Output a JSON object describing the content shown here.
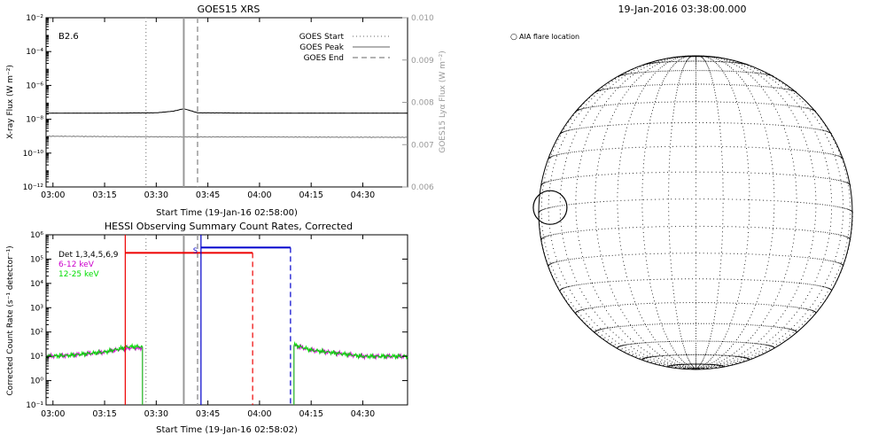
{
  "chart_data": [
    {
      "type": "line",
      "title": "GOES15 XRS",
      "xlabel": "Start Time (19-Jan-16 02:58:00)",
      "ylabel": "X-ray Flux (W m⁻²)",
      "y2label": "GOES15 Lyα Flux (W m⁻²)",
      "annotation": "B2.6",
      "x_ticks": [
        "03:00",
        "03:15",
        "03:30",
        "03:45",
        "04:00",
        "04:15",
        "04:30"
      ],
      "xlim": [
        "02:58",
        "04:43"
      ],
      "y_scale": "log",
      "ylim": [
        1e-12,
        0.01
      ],
      "y_ticks": [
        "10⁻¹²",
        "10⁻¹⁰",
        "10⁻⁸",
        "10⁻⁶",
        "10⁻⁴",
        "10⁻²"
      ],
      "y2lim": [
        0.006,
        0.01
      ],
      "y2_ticks": [
        "0.006",
        "0.007",
        "0.008",
        "0.009",
        "0.010"
      ],
      "legend": {
        "position": "top-right",
        "entries": [
          {
            "label": "GOES Start",
            "style": "dotted",
            "time": "03:27"
          },
          {
            "label": "GOES Peak",
            "style": "solid",
            "time": "03:38"
          },
          {
            "label": "GOES End",
            "style": "dashed",
            "time": "03:42"
          }
        ]
      },
      "series": [
        {
          "axis": "left",
          "color": "#000000",
          "x": [
            "02:58",
            "03:15",
            "03:30",
            "03:35",
            "03:38",
            "03:40",
            "03:42",
            "04:00",
            "04:15",
            "04:43"
          ],
          "y": [
            2.3e-08,
            2.3e-08,
            2.4e-08,
            3e-08,
            4.2e-08,
            3.2e-08,
            2.4e-08,
            2.3e-08,
            2.3e-08,
            2.3e-08
          ]
        },
        {
          "axis": "left",
          "color": "#777777",
          "x": [
            "02:58",
            "03:15",
            "03:30",
            "03:45",
            "04:00",
            "04:15",
            "04:43"
          ],
          "y": [
            1e-09,
            9.5e-10,
            9.2e-10,
            9e-10,
            9e-10,
            8.8e-10,
            8.6e-10
          ]
        }
      ]
    },
    {
      "type": "line",
      "title": "HESSI Observing Summary Count Rates, Corrected",
      "xlabel": "Start Time (19-Jan-16 02:58:02)",
      "ylabel": "Corrected Count Rate (s⁻¹ detector⁻¹)",
      "x_ticks": [
        "03:00",
        "03:15",
        "03:30",
        "03:45",
        "04:00",
        "04:15",
        "04:30"
      ],
      "xlim": [
        "02:58",
        "04:43"
      ],
      "y_scale": "log",
      "ylim": [
        0.1,
        1000000.0
      ],
      "y_ticks": [
        "10⁻¹",
        "10⁰",
        "10¹",
        "10²",
        "10³",
        "10⁴",
        "10⁵",
        "10⁶"
      ],
      "legend_entries": [
        {
          "label": "Det 1,3,4,5,6,9",
          "color": "#000000"
        },
        {
          "label": "6-12 keV",
          "color": "#cc00cc"
        },
        {
          "label": "12-25 keV",
          "color": "#00dd00"
        }
      ],
      "markers": [
        {
          "label": "",
          "color": "#ee0000",
          "start": "03:21",
          "end": "03:58",
          "level": 180000.0
        },
        {
          "label": "S",
          "color": "#0000cc",
          "start": "03:43",
          "end": "04:09",
          "level": 300000.0
        }
      ],
      "vlines": [
        {
          "time": "03:27",
          "style": "dotted",
          "color": "#999999"
        },
        {
          "time": "03:38",
          "style": "solid",
          "color": "#999999"
        },
        {
          "time": "03:42",
          "style": "dashed",
          "color": "#999999"
        }
      ],
      "series": [
        {
          "name": "6-12 keV",
          "color": "#cc00cc",
          "segments": [
            {
              "x": [
                "02:58",
                "03:05",
                "03:15",
                "03:22",
                "03:26"
              ],
              "y": [
                10,
                11,
                15,
                22,
                22
              ]
            },
            {
              "x": [
                "04:10",
                "04:15",
                "04:30",
                "04:43"
              ],
              "y": [
                28,
                18,
                10,
                10
              ]
            }
          ]
        },
        {
          "name": "12-25 keV",
          "color": "#00dd00",
          "segments": [
            {
              "x": [
                "02:58",
                "03:05",
                "03:15",
                "03:22",
                "03:26"
              ],
              "y": [
                10,
                11,
                15,
                25,
                25
              ]
            },
            {
              "x": [
                "04:10",
                "04:15",
                "04:30",
                "04:43"
              ],
              "y": [
                30,
                18,
                10,
                10
              ]
            }
          ]
        }
      ]
    },
    {
      "type": "map",
      "title": "19-Jan-2016 03:38:00.000",
      "legend_label": "AIA flare location",
      "legend_symbol": "○",
      "flare": {
        "longitude_deg": -68,
        "latitude_deg": 0
      }
    }
  ]
}
